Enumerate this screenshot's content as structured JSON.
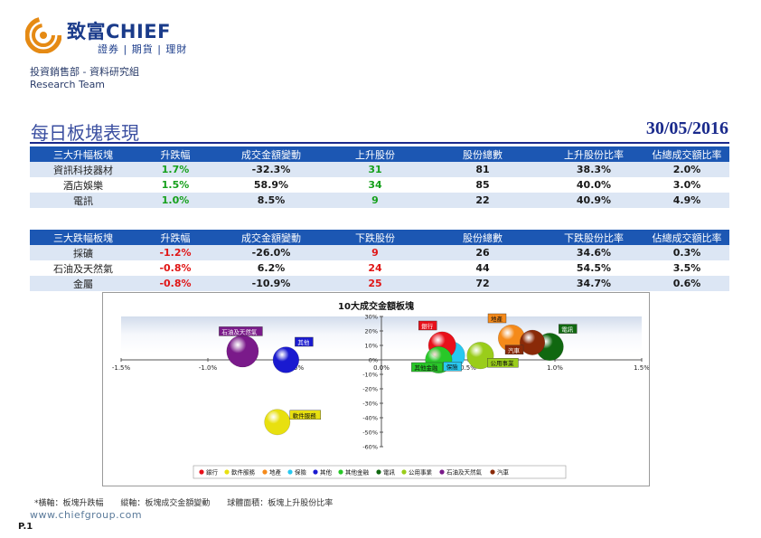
{
  "header": {
    "company_name": "致富CHIEF",
    "company_tagline": "證券 | 期貨 | 理財",
    "department": "投資銷售部 - 資料研究組",
    "team": "Research Team"
  },
  "title": "每日板塊表現",
  "date": "30/05/2016",
  "colors": {
    "header_blue": "#1c57b3",
    "row_blue": "#dce6f4",
    "up_green": "#16a01c",
    "down_red": "#e01616",
    "title_navy": "#1a2a8c"
  },
  "top_gainers": {
    "headers": [
      "三大升幅板塊",
      "升跌幅",
      "成交金額變動",
      "上升股份",
      "股份總數",
      "上升股份比率",
      "佔總成交額比率"
    ],
    "rows": [
      {
        "sector": "資訊科技器材",
        "change": "1.7%",
        "turnover_change": "-32.3%",
        "advancers": "31",
        "total": "81",
        "ratio": "38.3%",
        "share": "2.0%"
      },
      {
        "sector": "酒店娛樂",
        "change": "1.5%",
        "turnover_change": "58.9%",
        "advancers": "34",
        "total": "85",
        "ratio": "40.0%",
        "share": "3.0%"
      },
      {
        "sector": "電訊",
        "change": "1.0%",
        "turnover_change": "8.5%",
        "advancers": "9",
        "total": "22",
        "ratio": "40.9%",
        "share": "4.9%"
      }
    ]
  },
  "top_losers": {
    "headers": [
      "三大跌幅板塊",
      "升跌幅",
      "成交金額變動",
      "下跌股份",
      "股份總數",
      "下跌股份比率",
      "佔總成交額比率"
    ],
    "rows": [
      {
        "sector": "採礦",
        "change": "-1.2%",
        "turnover_change": "-26.0%",
        "decliners": "9",
        "total": "26",
        "ratio": "34.6%",
        "share": "0.3%"
      },
      {
        "sector": "石油及天然氣",
        "change": "-0.8%",
        "turnover_change": "6.2%",
        "decliners": "24",
        "total": "44",
        "ratio": "54.5%",
        "share": "3.5%"
      },
      {
        "sector": "金屬",
        "change": "-0.8%",
        "turnover_change": "-10.9%",
        "decliners": "25",
        "total": "72",
        "ratio": "34.7%",
        "share": "0.6%"
      }
    ]
  },
  "chart_data": {
    "type": "scatter",
    "title": "10大成交金額板塊",
    "xlim": [
      -1.5,
      1.5
    ],
    "ylim": [
      -60,
      30
    ],
    "x_ticks": [
      -1.5,
      -1.0,
      -0.5,
      0.0,
      0.5,
      1.0,
      1.5
    ],
    "y_ticks": [
      30,
      20,
      10,
      0,
      -10,
      -20,
      -30,
      -40,
      -50,
      -60
    ],
    "x_tick_labels": [
      "-1.5%",
      "-1.0%",
      "-0.5%",
      "0.0%",
      "0.5%",
      "1.0%",
      "1.5%"
    ],
    "y_tick_labels": [
      "30%",
      "20%",
      "10%",
      "0%",
      "-10%",
      "-20%",
      "-30%",
      "-40%",
      "-50%",
      "-60%"
    ],
    "legend_position": "bottom",
    "series": [
      {
        "name": "銀行",
        "x": 0.35,
        "y": 10,
        "bubble": 40,
        "color": "#e8101a",
        "label_pos": "upper-left"
      },
      {
        "name": "軟件服務",
        "x": -0.6,
        "y": -43,
        "bubble": 35,
        "color": "#e8e010",
        "label_pos": "right"
      },
      {
        "name": "地產",
        "x": 0.75,
        "y": 15,
        "bubble": 38,
        "color": "#f58a1a",
        "label_pos": "upper-left"
      },
      {
        "name": "保險",
        "x": 0.4,
        "y": 3,
        "bubble": 42,
        "color": "#28c8f0",
        "label_pos": "below"
      },
      {
        "name": "其他",
        "x": -0.55,
        "y": 0,
        "bubble": 36,
        "color": "#1a1ad0",
        "label_pos": "upper-right"
      },
      {
        "name": "其他金融",
        "x": 0.33,
        "y": 0,
        "bubble": 38,
        "color": "#28c828",
        "label_pos": "lower-left"
      },
      {
        "name": "電訊",
        "x": 0.97,
        "y": 9,
        "bubble": 40,
        "color": "#106810",
        "label_pos": "upper-right"
      },
      {
        "name": "公用事業",
        "x": 0.57,
        "y": 3,
        "bubble": 38,
        "color": "#9acd1a",
        "label_pos": "lower-right"
      },
      {
        "name": "石油及天然氣",
        "x": -0.8,
        "y": 6,
        "bubble": 54,
        "color": "#7a1a8a",
        "label_pos": "upper-left"
      },
      {
        "name": "汽車",
        "x": 0.87,
        "y": 12,
        "bubble": 33,
        "color": "#8a2a08",
        "label_pos": "lower-left"
      }
    ]
  },
  "footnote": {
    "x_axis_note": "*橫軸：板塊升跌幅",
    "y_axis_note": "縱軸：板塊成交金額變動",
    "bubble_note": "球體面積：板塊上升股份比率"
  },
  "website": "www.chiefgroup.com",
  "page_number": "P.1"
}
